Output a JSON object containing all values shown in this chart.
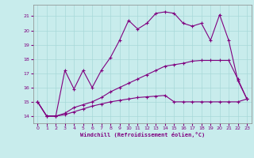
{
  "xlabel": "Windchill (Refroidissement éolien,°C)",
  "background_color": "#c8ecec",
  "line_color": "#800080",
  "grid_color": "#a8d8d8",
  "x_values": [
    0,
    1,
    2,
    3,
    4,
    5,
    6,
    7,
    8,
    9,
    10,
    11,
    12,
    13,
    14,
    15,
    16,
    17,
    18,
    19,
    20,
    21,
    22,
    23
  ],
  "series1": [
    15.0,
    14.0,
    14.0,
    17.2,
    15.9,
    17.2,
    16.0,
    17.2,
    18.1,
    19.3,
    20.7,
    20.1,
    20.5,
    21.2,
    21.3,
    21.2,
    20.5,
    20.3,
    20.5,
    19.3,
    21.1,
    19.3,
    16.5,
    15.2
  ],
  "series2": [
    15.0,
    14.0,
    14.0,
    14.2,
    14.6,
    14.8,
    15.0,
    15.3,
    15.7,
    16.0,
    16.3,
    16.6,
    16.9,
    17.2,
    17.5,
    17.6,
    17.7,
    17.85,
    17.9,
    17.9,
    17.9,
    17.9,
    16.6,
    15.2
  ],
  "series3": [
    15.0,
    14.0,
    14.0,
    14.1,
    14.3,
    14.5,
    14.7,
    14.85,
    15.0,
    15.1,
    15.2,
    15.3,
    15.35,
    15.4,
    15.45,
    15.0,
    15.0,
    15.0,
    15.0,
    15.0,
    15.0,
    15.0,
    15.0,
    15.2
  ],
  "ylim": [
    13.5,
    21.8
  ],
  "xlim": [
    -0.5,
    23.5
  ],
  "yticks": [
    14,
    15,
    16,
    17,
    18,
    19,
    20,
    21
  ],
  "xticks": [
    0,
    1,
    2,
    3,
    4,
    5,
    6,
    7,
    8,
    9,
    10,
    11,
    12,
    13,
    14,
    15,
    16,
    17,
    18,
    19,
    20,
    21,
    22,
    23
  ]
}
